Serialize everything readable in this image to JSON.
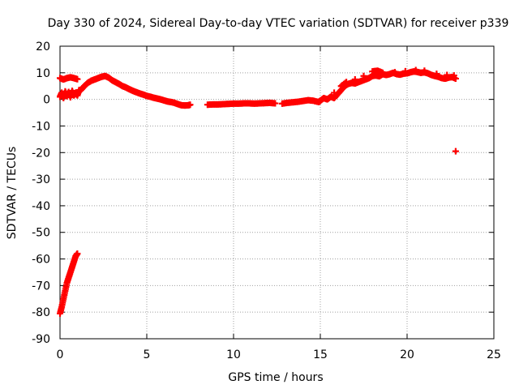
{
  "chart_data": {
    "type": "scatter",
    "title": "Day 330 of 2024, Sidereal Day-to-day VTEC variation (SDTVAR) for receiver p339",
    "xlabel": "GPS time / hours",
    "ylabel": "SDTVAR / TECUs",
    "xlim": [
      0,
      25
    ],
    "ylim": [
      -90,
      20
    ],
    "xticks": [
      0,
      5,
      10,
      15,
      20,
      25
    ],
    "yticks": [
      20,
      10,
      0,
      -10,
      -20,
      -30,
      -40,
      -50,
      -60,
      -70,
      -80,
      -90
    ],
    "grid": true,
    "legend": "none",
    "series": [
      {
        "name": "SDTVAR",
        "color": "#ff0000",
        "marker": "plus",
        "points": [
          [
            0.0,
            -80.5
          ],
          [
            0.1,
            -78
          ],
          [
            0.2,
            -75
          ],
          [
            0.3,
            -72
          ],
          [
            0.4,
            -69
          ],
          [
            0.5,
            -67
          ],
          [
            0.6,
            -65
          ],
          [
            0.7,
            -63
          ],
          [
            0.8,
            -61
          ],
          [
            0.9,
            -59
          ],
          [
            1.0,
            -58
          ],
          [
            0.0,
            8
          ],
          [
            0.2,
            7.5
          ],
          [
            0.4,
            8
          ],
          [
            0.6,
            8.3
          ],
          [
            0.8,
            8
          ],
          [
            1.0,
            7.6
          ],
          [
            0.0,
            1
          ],
          [
            0.1,
            2.5
          ],
          [
            0.2,
            0.5
          ],
          [
            0.3,
            3
          ],
          [
            0.4,
            1.2
          ],
          [
            0.5,
            2.8
          ],
          [
            0.6,
            0.8
          ],
          [
            0.7,
            3.2
          ],
          [
            0.8,
            1.5
          ],
          [
            0.9,
            2.5
          ],
          [
            1.0,
            1.5
          ],
          [
            1.1,
            3.5
          ],
          [
            1.2,
            3.5
          ],
          [
            1.4,
            5
          ],
          [
            1.6,
            6.2
          ],
          [
            1.8,
            7
          ],
          [
            2.0,
            7.5
          ],
          [
            2.2,
            8
          ],
          [
            2.4,
            8.5
          ],
          [
            2.6,
            8.8
          ],
          [
            2.8,
            8.2
          ],
          [
            3.0,
            7.2
          ],
          [
            3.2,
            6.5
          ],
          [
            3.4,
            5.8
          ],
          [
            3.6,
            5
          ],
          [
            3.8,
            4.5
          ],
          [
            4.0,
            3.8
          ],
          [
            4.2,
            3.2
          ],
          [
            4.4,
            2.7
          ],
          [
            4.6,
            2.2
          ],
          [
            4.8,
            1.8
          ],
          [
            5.0,
            1.3
          ],
          [
            5.2,
            1
          ],
          [
            5.4,
            0.6
          ],
          [
            5.6,
            0.3
          ],
          [
            5.8,
            0
          ],
          [
            6.0,
            -0.4
          ],
          [
            6.2,
            -0.8
          ],
          [
            6.4,
            -1
          ],
          [
            6.6,
            -1.3
          ],
          [
            6.8,
            -1.8
          ],
          [
            7.0,
            -2.2
          ],
          [
            7.2,
            -2.3
          ],
          [
            7.4,
            -2.2
          ],
          [
            7.5,
            -2
          ],
          [
            8.5,
            -2
          ],
          [
            8.8,
            -1.9
          ],
          [
            9.1,
            -1.9
          ],
          [
            9.4,
            -1.8
          ],
          [
            9.7,
            -1.7
          ],
          [
            10.0,
            -1.6
          ],
          [
            10.3,
            -1.6
          ],
          [
            10.6,
            -1.5
          ],
          [
            10.9,
            -1.5
          ],
          [
            11.2,
            -1.6
          ],
          [
            11.5,
            -1.5
          ],
          [
            11.8,
            -1.4
          ],
          [
            12.1,
            -1.3
          ],
          [
            12.4,
            -1.5
          ],
          [
            12.8,
            -1.6
          ],
          [
            13.1,
            -1.3
          ],
          [
            13.4,
            -1.1
          ],
          [
            13.7,
            -0.9
          ],
          [
            14.0,
            -0.6
          ],
          [
            14.3,
            -0.3
          ],
          [
            14.6,
            -0.5
          ],
          [
            14.9,
            -1
          ],
          [
            15.0,
            -0.5
          ],
          [
            15.2,
            0.5
          ],
          [
            15.4,
            0
          ],
          [
            15.6,
            1
          ],
          [
            15.8,
            0.5
          ],
          [
            16.0,
            2
          ],
          [
            16.2,
            3.5
          ],
          [
            16.4,
            5
          ],
          [
            16.6,
            5.8
          ],
          [
            16.8,
            6.2
          ],
          [
            17.0,
            6
          ],
          [
            17.2,
            6.5
          ],
          [
            17.4,
            7
          ],
          [
            17.6,
            7.5
          ],
          [
            17.8,
            8
          ],
          [
            18.0,
            8.8
          ],
          [
            18.2,
            9
          ],
          [
            18.4,
            8.7
          ],
          [
            18.6,
            9.5
          ],
          [
            18.8,
            9.2
          ],
          [
            19.0,
            9.5
          ],
          [
            19.2,
            10
          ],
          [
            19.4,
            9.5
          ],
          [
            19.6,
            9.3
          ],
          [
            19.8,
            9.7
          ],
          [
            20.0,
            9.8
          ],
          [
            20.2,
            10.2
          ],
          [
            20.4,
            10.5
          ],
          [
            20.6,
            10.3
          ],
          [
            20.8,
            10
          ],
          [
            21.0,
            10.2
          ],
          [
            21.2,
            9.8
          ],
          [
            21.4,
            9.2
          ],
          [
            21.6,
            8.8
          ],
          [
            21.8,
            8.5
          ],
          [
            22.0,
            8
          ],
          [
            22.2,
            7.8
          ],
          [
            22.4,
            8.2
          ],
          [
            22.6,
            8.4
          ],
          [
            22.8,
            7.8
          ],
          [
            15.8,
            2.5
          ],
          [
            16.2,
            5
          ],
          [
            16.5,
            6.5
          ],
          [
            17.0,
            7.5
          ],
          [
            17.5,
            8.8
          ],
          [
            18.0,
            10.5
          ],
          [
            18.3,
            10.8
          ],
          [
            18.6,
            10
          ],
          [
            19.3,
            10.2
          ],
          [
            19.9,
            10.6
          ],
          [
            20.5,
            11
          ],
          [
            21.0,
            10.8
          ],
          [
            21.7,
            9.6
          ],
          [
            22.3,
            9.2
          ],
          [
            22.7,
            9
          ],
          [
            22.8,
            -19.5
          ]
        ]
      }
    ]
  }
}
